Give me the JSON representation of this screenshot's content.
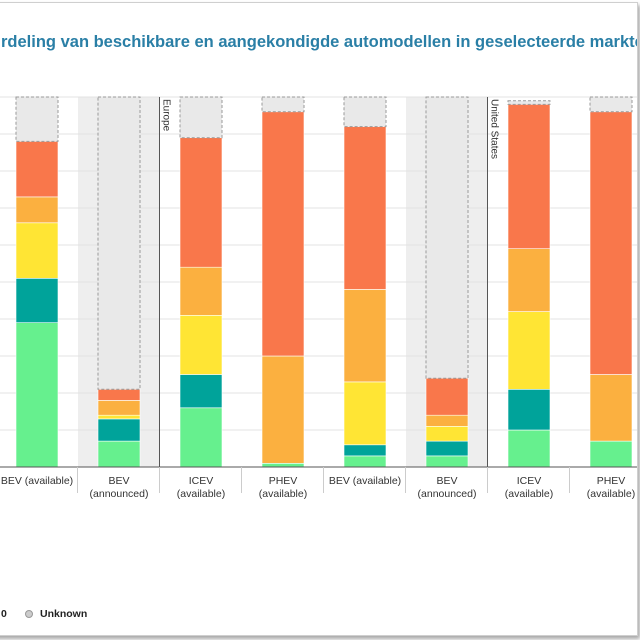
{
  "title": "rdeling van beschikbare en aangekondigde automodellen in geselecteerde markten,",
  "colors": {
    "title": "#2a7fa6",
    "segments": [
      "#66f08e",
      "#00a39a",
      "#ffe534",
      "#fbb040",
      "#f9774b",
      "#e9e9e9"
    ],
    "shade": "#eeeeee"
  },
  "chart_data": {
    "type": "bar",
    "stacked": true,
    "ylim": [
      0,
      100
    ],
    "grid": true,
    "segment_order": "bottom-to-top; last segment is Unknown (dashed outline)",
    "regions": [
      {
        "name": "",
        "start_index": 0
      },
      {
        "name": "Europe",
        "start_index": 2
      },
      {
        "name": "United States",
        "start_index": 6
      }
    ],
    "bars": [
      {
        "label": "BEV (available)",
        "shaded": false,
        "segments": [
          39,
          12,
          15,
          7,
          15,
          12
        ]
      },
      {
        "label": "BEV\n(announced)",
        "shaded": true,
        "segments": [
          7,
          6,
          1,
          4,
          3,
          79
        ]
      },
      {
        "label": "ICEV\n(available)",
        "shaded": false,
        "segments": [
          16,
          9,
          16,
          13,
          35,
          11
        ]
      },
      {
        "label": "PHEV\n(available)",
        "shaded": false,
        "segments": [
          1,
          0,
          0,
          29,
          66,
          4
        ]
      },
      {
        "label": "BEV (available)",
        "shaded": false,
        "segments": [
          3,
          3,
          17,
          25,
          44,
          8
        ]
      },
      {
        "label": "BEV\n(announced)",
        "shaded": true,
        "segments": [
          3,
          4,
          4,
          3,
          10,
          76
        ]
      },
      {
        "label": "ICEV\n(available)",
        "shaded": false,
        "segments": [
          10,
          11,
          21,
          17,
          39,
          1
        ]
      },
      {
        "label": "PHEV\n(available)",
        "shaded": false,
        "segments": [
          7,
          0,
          0,
          18,
          71,
          4
        ]
      }
    ]
  },
  "legend": {
    "partial_label": "0",
    "unknown_label": "Unknown"
  }
}
